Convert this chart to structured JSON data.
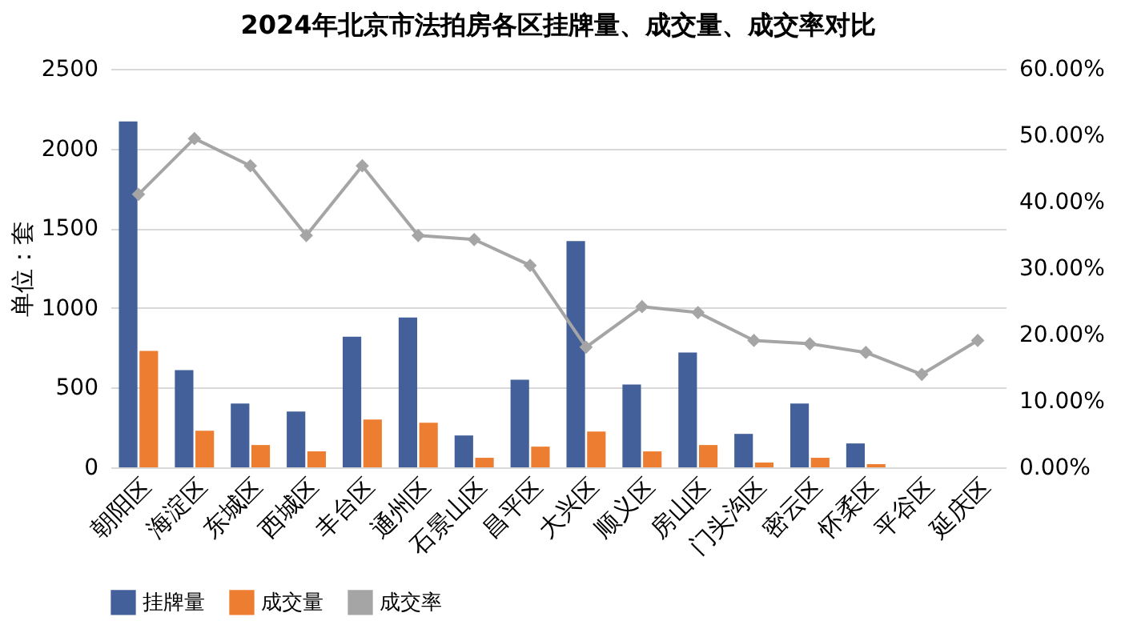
{
  "chart_data": {
    "type": "bar",
    "title": "2024年北京市法拍房各区挂牌量、成交量、成交率对比",
    "ylabel": "单位：套",
    "categories": [
      "朝阳区",
      "海淀区",
      "东城区",
      "西城区",
      "丰台区",
      "通州区",
      "石景山区",
      "昌平区",
      "大兴区",
      "顺义区",
      "房山区",
      "门头沟区",
      "密云区",
      "怀柔区",
      "平谷区",
      "延庆区"
    ],
    "series": [
      {
        "name": "挂牌量",
        "color": "#44609a",
        "values": [
          2170,
          610,
          400,
          350,
          820,
          940,
          200,
          550,
          1420,
          520,
          720,
          210,
          400,
          150,
          null,
          null
        ]
      },
      {
        "name": "成交量",
        "color": "#ed7d31",
        "values": [
          730,
          230,
          140,
          100,
          300,
          280,
          60,
          130,
          225,
          100,
          140,
          30,
          60,
          20,
          null,
          null
        ]
      },
      {
        "name": "成交率",
        "type": "line",
        "axis": "y2",
        "color": "#a5a5a5",
        "values": [
          41.1,
          49.5,
          45.4,
          34.9,
          45.4,
          34.9,
          34.3,
          30.4,
          18.1,
          24.2,
          23.3,
          19.1,
          18.6,
          17.3,
          14.0,
          19.1
        ]
      }
    ],
    "ylim": [
      0,
      2500
    ],
    "yticks": [
      0,
      500,
      1000,
      1500,
      2000,
      2500
    ],
    "y2lim": [
      0,
      60
    ],
    "y2ticks": [
      {
        "value": 0,
        "label": "0.00%"
      },
      {
        "value": 10,
        "label": "10.00%"
      },
      {
        "value": 20,
        "label": "20.00%"
      },
      {
        "value": 30,
        "label": "30.00%"
      },
      {
        "value": 40,
        "label": "40.00%"
      },
      {
        "value": 50,
        "label": "50.00%"
      },
      {
        "value": 60,
        "label": "60.00%"
      }
    ],
    "grid": "y",
    "legend": "bottom",
    "marker": "diamond"
  }
}
